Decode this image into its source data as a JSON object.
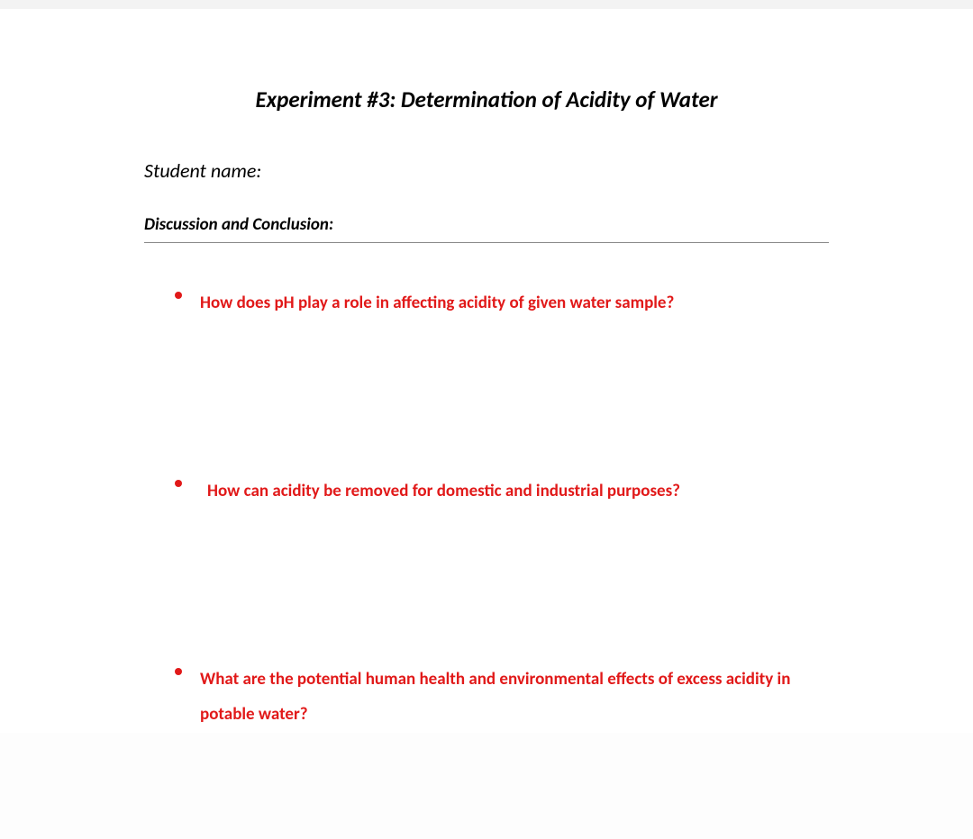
{
  "document": {
    "title": "Experiment #3: Determination of Acidity of Water",
    "student_name_label": "Student name:",
    "section_header": "Discussion and Conclusion:",
    "questions": [
      "How does pH play a role in affecting acidity of given water sample?",
      "How can acidity be removed for domestic and industrial purposes?",
      "What are the potential human health and environmental effects of excess acidity in potable water?"
    ],
    "colors": {
      "accent": "#e11919",
      "text": "#000000",
      "background": "#ffffff",
      "topbar": "#f3f3f3",
      "rule": "#888888"
    },
    "typography": {
      "title_fontsize": 25,
      "body_fontsize": 22,
      "section_fontsize": 19,
      "question_fontsize": 19,
      "font_family": "Calibri"
    }
  }
}
